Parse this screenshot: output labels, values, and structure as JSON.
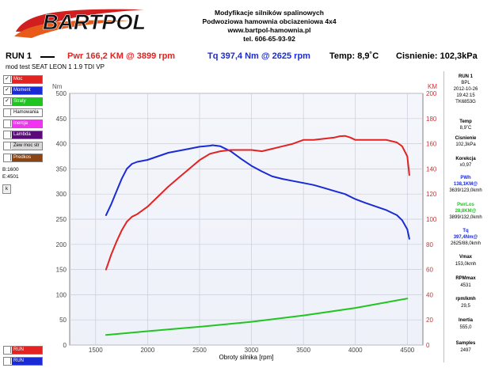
{
  "header": {
    "logo_text": "BARTPOL",
    "lines": [
      "Modyfikacje silników spalinowych",
      "Podwoziowa hamownia obciazeniowa 4x4",
      "www.bartpol-hamownia.pl",
      "tel. 606-65-93-92"
    ]
  },
  "runbar": {
    "run": "RUN 1",
    "power": "Pwr  166,2 KM @ 3899 rpm",
    "torque": "Tq  397,4 Nm @ 2625 rpm",
    "temp": "Temp: 8,9˚C",
    "pressure": "Cisnienie: 102,3kPa"
  },
  "subtitle": "mod test SEAT LEON 1 1.9 TDI VP",
  "legend": [
    {
      "label": "Moc",
      "checked": true,
      "color": "#e32222",
      "text_color": "#ffffff"
    },
    {
      "label": "Moment",
      "checked": true,
      "color": "#1a2ad4",
      "text_color": "#ffffff"
    },
    {
      "label": "Straty",
      "checked": true,
      "color": "#21c521",
      "text_color": "#ffffff"
    },
    {
      "label": "Hamowania",
      "checked": false,
      "color": "#ffffff",
      "text_color": "#000000"
    },
    {
      "label": "Inercja",
      "checked": false,
      "color": "#f034f0",
      "text_color": "#ffffff"
    },
    {
      "label": "Lambda",
      "checked": false,
      "color": "#5a0a7a",
      "text_color": "#ffffff"
    },
    {
      "label": "Zew moc str",
      "checked": false,
      "color": "#d9d9d9",
      "text_color": "#000000"
    },
    {
      "label": "Predkos",
      "checked": false,
      "color": "#8b4513",
      "text_color": "#ffffff"
    }
  ],
  "legend_bottom": [
    {
      "label": "RUN",
      "checked": false,
      "color": "#e32222",
      "text_color": "#ffffff"
    },
    {
      "label": "RUN",
      "checked": false,
      "color": "#1a2ad4",
      "text_color": "#ffffff"
    }
  ],
  "b_value": "B:1600",
  "e_value": "E:4501",
  "k_button": "k",
  "info_panel": {
    "run": "RUN 1",
    "name": "BPL",
    "date": "2012-10-26",
    "time": "19:42:15",
    "code": "TK6853G",
    "temp_label": "Temp",
    "temp_value": "8,9˚C",
    "pressure_label": "Cisnienie",
    "pressure_value": "102,3kPa",
    "corr_label": "Korekcja",
    "corr_value": "x0,97",
    "pwh_label": "PWh",
    "pwh_value": "138,1KM@",
    "pwh_value2": "3639/123,0kmh",
    "pwrlos_label": "PwrLos",
    "pwrlos_value": "28,8KM@",
    "pwrlos_value2": "3899/132,0kmh",
    "tq_label": "Tq",
    "tq_value": "397,4Nm@",
    "tq_value2": "2625/88,0kmh",
    "vmax_label": "Vmax",
    "vmax_value": "153,0kmh",
    "rpmmax_label": "RPMmax",
    "rpmmax_value": "4531",
    "rpmkmh_label": "rpm/kmh",
    "rpmkmh_value": "29,5",
    "inertia_label": "Inertia",
    "inertia_value": "555,0",
    "samples_label": "Samples",
    "samples_value": "2497"
  },
  "chart_data": {
    "type": "line",
    "xlabel": "Obroty silnika [rpm]",
    "ylabel_left": "Nm",
    "ylabel_right": "KM",
    "xlim": [
      1250,
      4650
    ],
    "x_ticks": [
      1500,
      2000,
      2500,
      3000,
      3500,
      4000,
      4500
    ],
    "ylim_left": [
      0,
      500
    ],
    "y_ticks_left": [
      0,
      50,
      100,
      150,
      200,
      250,
      300,
      350,
      400,
      450,
      500
    ],
    "ylim_right": [
      0,
      200
    ],
    "y_ticks_right": [
      0,
      20,
      40,
      60,
      80,
      100,
      120,
      140,
      160,
      180,
      200
    ],
    "grid": true,
    "series": [
      {
        "name": "Moment",
        "axis": "left",
        "color": "#1a2ad4",
        "x": [
          1600,
          1650,
          1700,
          1750,
          1800,
          1850,
          1900,
          2000,
          2100,
          2200,
          2300,
          2400,
          2500,
          2600,
          2625,
          2700,
          2800,
          2900,
          3000,
          3100,
          3200,
          3300,
          3400,
          3500,
          3600,
          3700,
          3800,
          3900,
          4000,
          4100,
          4200,
          4300,
          4400,
          4450,
          4500,
          4520
        ],
        "y": [
          258,
          280,
          305,
          330,
          350,
          360,
          364,
          368,
          375,
          382,
          386,
          390,
          394,
          396,
          397,
          395,
          385,
          370,
          356,
          345,
          335,
          330,
          326,
          322,
          318,
          312,
          306,
          300,
          290,
          282,
          275,
          268,
          258,
          248,
          230,
          211
        ]
      },
      {
        "name": "Moc",
        "axis": "right",
        "color": "#e32222",
        "x": [
          1600,
          1650,
          1700,
          1750,
          1800,
          1850,
          1900,
          2000,
          2100,
          2200,
          2300,
          2400,
          2500,
          2600,
          2700,
          2800,
          2900,
          3000,
          3100,
          3200,
          3300,
          3400,
          3500,
          3600,
          3700,
          3800,
          3850,
          3900,
          3950,
          4000,
          4100,
          4200,
          4300,
          4400,
          4450,
          4500,
          4520
        ],
        "y": [
          60,
          72,
          82,
          91,
          98,
          102,
          104,
          110,
          118,
          126,
          133,
          140,
          147,
          152,
          154,
          155,
          155,
          155,
          154,
          156,
          158,
          160,
          163,
          163,
          164,
          165,
          166,
          166.2,
          165,
          163,
          163,
          163,
          163,
          161,
          158,
          150,
          135
        ]
      },
      {
        "name": "Straty",
        "axis": "right",
        "color": "#21c521",
        "x": [
          1600,
          2000,
          2500,
          3000,
          3500,
          4000,
          4500
        ],
        "y": [
          8,
          11,
          14.5,
          18.5,
          23.5,
          29.5,
          37
        ]
      }
    ]
  }
}
